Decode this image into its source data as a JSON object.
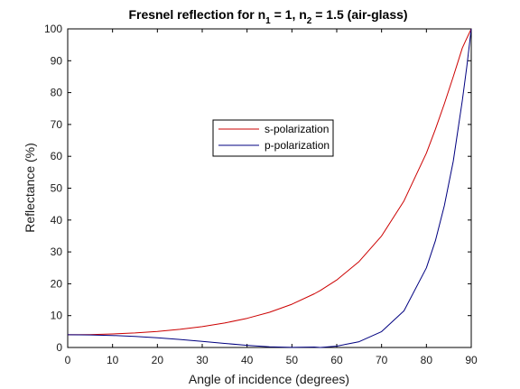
{
  "chart_data": {
    "type": "line",
    "title": "Fresnel reflection for n 1 = 1, n 2 = 1.5 (air-glass)",
    "title_parts": {
      "prefix": "Fresnel reflection for n",
      "sub1": "1",
      "mid": " = 1, n",
      "sub2": "2",
      "suffix": " = 1.5 (air-glass)"
    },
    "xlabel": "Angle of incidence (degrees)",
    "ylabel": "Reflectance (%)",
    "xlim": [
      0,
      90
    ],
    "ylim": [
      0,
      100
    ],
    "xticks": [
      0,
      10,
      20,
      30,
      40,
      50,
      60,
      70,
      80,
      90
    ],
    "yticks": [
      0,
      10,
      20,
      30,
      40,
      50,
      60,
      70,
      80,
      90,
      100
    ],
    "grid": false,
    "legend_position": "upper-center",
    "x": [
      0,
      5,
      10,
      15,
      20,
      25,
      30,
      35,
      40,
      45,
      50,
      55,
      56.31,
      60,
      65,
      70,
      75,
      80,
      82,
      84,
      86,
      88,
      89,
      90
    ],
    "series": [
      {
        "name": "s-polarization",
        "color": "#cc0000",
        "values": [
          4.0,
          4.06,
          4.25,
          4.57,
          5.04,
          5.68,
          6.55,
          7.67,
          9.15,
          11.06,
          13.57,
          16.86,
          17.87,
          21.2,
          27.0,
          35.0,
          46.0,
          61.0,
          68.5,
          76.5,
          85.0,
          94.0,
          97.0,
          100
        ]
      },
      {
        "name": "p-polarization",
        "color": "#000080",
        "values": [
          4.0,
          3.94,
          3.76,
          3.46,
          3.04,
          2.52,
          1.91,
          1.27,
          0.67,
          0.23,
          0.02,
          0.13,
          0.0,
          0.43,
          1.8,
          5.0,
          11.5,
          25.0,
          33.5,
          44.5,
          58.5,
          77.5,
          88.0,
          100
        ]
      }
    ]
  }
}
